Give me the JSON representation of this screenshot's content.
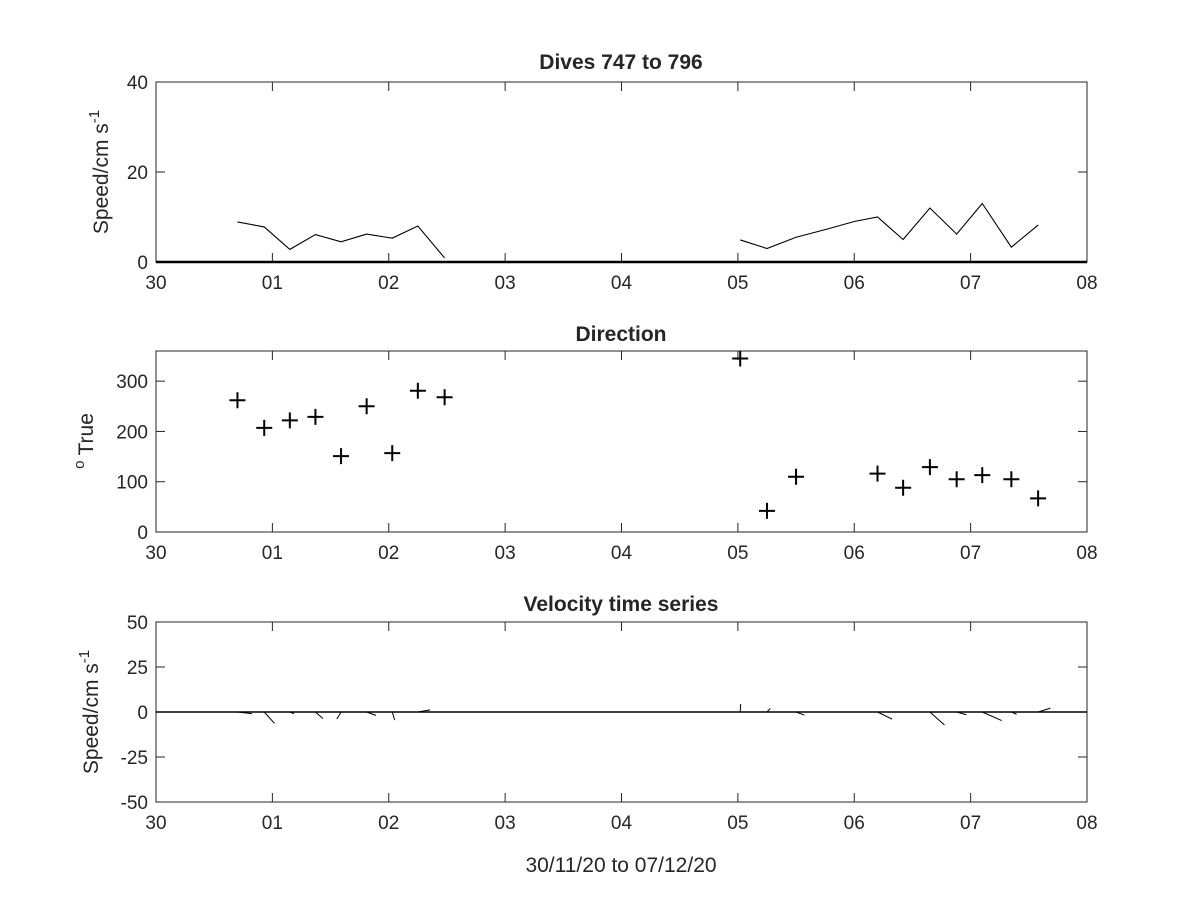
{
  "chart_data": [
    {
      "type": "line",
      "title": "Dives 747 to 796",
      "ylabel": "Speed/cm s",
      "ylabel_exponent": "-1",
      "xlabel": "",
      "xlim_days": [
        0,
        8
      ],
      "ylim": [
        0,
        40
      ],
      "xtick_labels": [
        "30",
        "01",
        "02",
        "03",
        "04",
        "05",
        "06",
        "07",
        "08"
      ],
      "ytick_labels": [
        "0",
        "20",
        "40"
      ],
      "yticks": [
        0,
        20,
        40
      ],
      "series": [
        {
          "segments": [
            {
              "x": [
                0.7,
                0.93,
                1.15,
                1.37,
                1.59,
                1.81,
                2.03,
                2.25,
                2.48
              ],
              "y": [
                8.9,
                7.8,
                2.8,
                6.1,
                4.5,
                6.2,
                5.3,
                8.0,
                0.9
              ]
            },
            {
              "x": [
                5.02,
                5.25,
                5.5,
                5.75,
                6.0,
                6.2,
                6.42,
                6.65,
                6.88,
                7.1,
                7.35,
                7.58
              ],
              "y": [
                4.9,
                3.0,
                5.5,
                7.2,
                9.0,
                10.0,
                5.0,
                12.0,
                6.2,
                13.0,
                3.3,
                8.2
              ]
            }
          ]
        }
      ]
    },
    {
      "type": "scatter",
      "title": "Direction",
      "ylabel_prefix": "o",
      "ylabel": "True",
      "xlabel": "",
      "xlim_days": [
        0,
        8
      ],
      "ylim": [
        0,
        360
      ],
      "xtick_labels": [
        "30",
        "01",
        "02",
        "03",
        "04",
        "05",
        "06",
        "07",
        "08"
      ],
      "ytick_labels": [
        "0",
        "100",
        "200",
        "300"
      ],
      "yticks": [
        0,
        100,
        200,
        300
      ],
      "marker": "+",
      "x": [
        0.7,
        0.93,
        1.15,
        1.37,
        1.59,
        1.81,
        2.03,
        2.25,
        2.48,
        5.02,
        5.25,
        5.5,
        6.2,
        6.42,
        6.65,
        6.88,
        7.1,
        7.35,
        7.58
      ],
      "y": [
        262,
        207,
        222,
        229,
        151,
        250,
        157,
        281,
        268,
        345,
        42,
        110,
        116,
        88,
        129,
        105,
        113,
        105,
        67
      ]
    },
    {
      "type": "line",
      "title": "Velocity time series",
      "ylabel": "Speed/cm s",
      "ylabel_exponent": "-1",
      "xlabel": "30/11/20 to 07/12/20",
      "xlim_days": [
        0,
        8
      ],
      "ylim": [
        -50,
        50
      ],
      "xtick_labels": [
        "30",
        "01",
        "02",
        "03",
        "04",
        "05",
        "06",
        "07",
        "08"
      ],
      "ytick_labels": [
        "-50",
        "-25",
        "0",
        "25",
        "50"
      ],
      "yticks": [
        -50,
        -25,
        0,
        25,
        50
      ],
      "stick_plot": true,
      "sticks": [
        {
          "x": 0.7,
          "u": 8.9,
          "v": -1.0
        },
        {
          "x": 0.93,
          "u": 6.3,
          "v": -7.0
        },
        {
          "x": 1.15,
          "u": 2.6,
          "v": -1.0
        },
        {
          "x": 1.37,
          "u": 4.6,
          "v": -4.0
        },
        {
          "x": 1.59,
          "u": -2.6,
          "v": -4.3
        },
        {
          "x": 1.81,
          "u": 5.8,
          "v": -2.1
        },
        {
          "x": 2.03,
          "u": 1.5,
          "v": -5.0
        },
        {
          "x": 2.25,
          "u": 7.6,
          "v": 1.3
        },
        {
          "x": 5.02,
          "u": 0.3,
          "v": 4.9
        },
        {
          "x": 5.25,
          "u": 2.0,
          "v": 2.2
        },
        {
          "x": 5.5,
          "u": 5.1,
          "v": -1.9
        },
        {
          "x": 6.2,
          "u": 9.0,
          "v": -4.4
        },
        {
          "x": 6.65,
          "u": 9.0,
          "v": -8.0
        },
        {
          "x": 6.88,
          "u": 6.0,
          "v": -1.7
        },
        {
          "x": 7.1,
          "u": 12.0,
          "v": -5.3
        },
        {
          "x": 7.35,
          "u": 3.2,
          "v": -1.4
        },
        {
          "x": 7.58,
          "u": 7.6,
          "v": 2.4
        }
      ]
    }
  ]
}
